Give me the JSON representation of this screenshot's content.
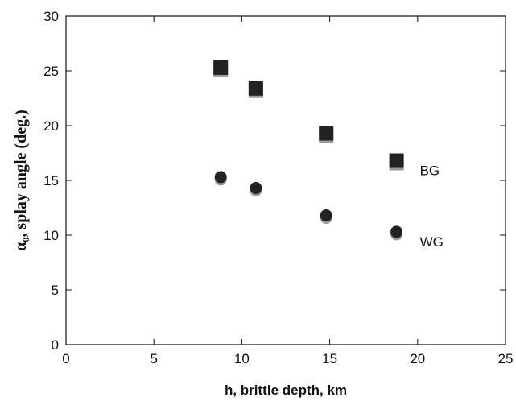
{
  "chart_data": {
    "type": "scatter",
    "xlabel": "h, brittle depth, km",
    "ylabel": "α₀, splay angle (deg.)",
    "xlim": [
      0,
      25
    ],
    "ylim": [
      0,
      30
    ],
    "xticks": [
      0,
      5,
      10,
      15,
      20,
      25
    ],
    "yticks": [
      0,
      5,
      10,
      15,
      20,
      25,
      30
    ],
    "grid": false,
    "series": [
      {
        "name": "BG",
        "marker": "square",
        "color": "#222222",
        "shadow_color": "#999999",
        "x": [
          8.8,
          10.8,
          14.8,
          18.8
        ],
        "y": [
          25.3,
          23.4,
          19.3,
          16.8
        ]
      },
      {
        "name": "WG",
        "marker": "circle",
        "color": "#222222",
        "shadow_color": "#999999",
        "x": [
          8.8,
          10.8,
          14.8,
          18.8
        ],
        "y": [
          15.3,
          14.3,
          11.8,
          10.3
        ]
      }
    ]
  }
}
